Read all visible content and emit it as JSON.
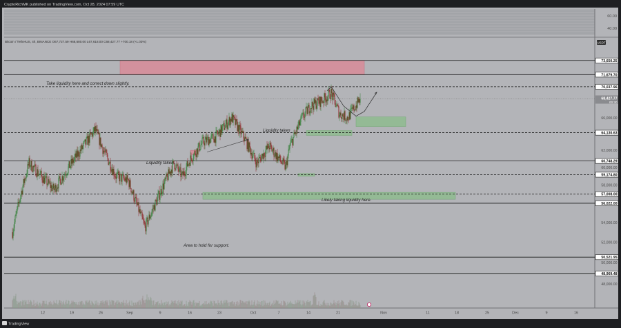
{
  "header": {
    "publisher": "CryptoRichMK published on TradingView.com, Oct 28, 2024 07:59 UTC"
  },
  "symbol_bar": {
    "text": "Bitcoin / TetherUS, 4h, BINANCE  O67,727.59  H68,680.00  L67,618.00  C68,427.77  +700.18 (+1.03%)"
  },
  "footer": {
    "brand": "TradingView"
  },
  "colors": {
    "background": "#b3b4b8",
    "frame": "#1e1f22",
    "candle_up": "#2e7d32",
    "candle_down": "#8b1f1f",
    "zone_red": "#d98c99",
    "zone_green": "#8fbc8f"
  },
  "chart_data": {
    "type": "candlestick",
    "symbol": "Bitcoin / TetherUS",
    "interval": "4h",
    "exchange": "BINANCE",
    "quote_currency": "USDT",
    "ohlc_last": {
      "open": 67727.59,
      "high": 68680.0,
      "low": 67618.0,
      "close": 68427.77,
      "change": 700.18,
      "change_pct": 1.03
    },
    "price_label": "68,427.77",
    "countdown": "00:30",
    "y_range": [
      46500,
      75800
    ],
    "y_ticks": [
      {
        "value": 66000,
        "label": "66,000.00"
      },
      {
        "value": 62000,
        "label": "62,000.00"
      },
      {
        "value": 60000,
        "label": "60,000.00"
      },
      {
        "value": 58000,
        "label": "58,000.00"
      },
      {
        "value": 54000,
        "label": "54,000.00"
      },
      {
        "value": 52000,
        "label": "52,000.00"
      },
      {
        "value": 50000,
        "label": "50,000.00"
      },
      {
        "value": 48000,
        "label": "48,000.00"
      }
    ],
    "indicator_ticks": [
      "60.00",
      "40.00"
    ],
    "levels": [
      {
        "value": 73650.25,
        "label": "73,650.25",
        "style": "solid"
      },
      {
        "value": 71679.7,
        "label": "71,679.70",
        "style": "solid"
      },
      {
        "value": 70037.96,
        "label": "70,037.96",
        "style": "dashed"
      },
      {
        "value": 64130.63,
        "label": "64,130.63",
        "style": "dashed"
      },
      {
        "value": 60748.29,
        "label": "60,748.29",
        "style": "solid"
      },
      {
        "value": 59174.8,
        "label": "59,174.80",
        "style": "dashed"
      },
      {
        "value": 57008.0,
        "label": "57,008.00",
        "style": "dashed"
      },
      {
        "value": 56022.0,
        "label": "56,022.00",
        "style": "solid"
      },
      {
        "value": 50521.95,
        "label": "50,521.95",
        "style": "solid"
      },
      {
        "value": 48969.48,
        "label": "48,969.48",
        "style": "solid"
      }
    ],
    "x_ticks": [
      "12",
      "19",
      "26",
      "Sep",
      "9",
      "16",
      "23",
      "Oct",
      "7",
      "14",
      "21",
      "Nov",
      "11",
      "18",
      "25",
      "Dec",
      "9",
      "16"
    ],
    "annotations": [
      "Take liquidity here and correct down slightly.",
      "Liquidity taken",
      "Liquidity taken.",
      "Likely taking liquidity here.",
      "Area to hold for support."
    ],
    "zones": [
      {
        "color": "red",
        "x": [
          "Aug 31",
          "Oct 29"
        ],
        "y": [
          71679.7,
          73650.25
        ]
      },
      {
        "color": "red",
        "x": [
          "Sep 17",
          "Sep 19"
        ],
        "y": [
          61500,
          62000
        ]
      },
      {
        "color": "green",
        "x": [
          "Oct 27",
          "Nov 8"
        ],
        "y": [
          64900,
          66100
        ]
      },
      {
        "color": "green",
        "x": [
          "Oct 15",
          "Oct 26"
        ],
        "y": [
          63800,
          64400
        ]
      },
      {
        "color": "green",
        "x": [
          "Oct 13",
          "Oct 17"
        ],
        "y": [
          59000,
          59300
        ]
      },
      {
        "color": "green",
        "x": [
          "Sep 20",
          "Nov 20"
        ],
        "y": [
          56450,
          57200
        ]
      }
    ],
    "price_path": [
      {
        "date": "Aug 5",
        "price": 53000
      },
      {
        "date": "Aug 7",
        "price": 57000
      },
      {
        "date": "Aug 9",
        "price": 60500
      },
      {
        "date": "Aug 12",
        "price": 59000
      },
      {
        "date": "Aug 15",
        "price": 57500
      },
      {
        "date": "Aug 20",
        "price": 61000
      },
      {
        "date": "Aug 25",
        "price": 64500
      },
      {
        "date": "Aug 27",
        "price": 62000
      },
      {
        "date": "Aug 30",
        "price": 59000
      },
      {
        "date": "Sep 2",
        "price": 58500
      },
      {
        "date": "Sep 6",
        "price": 53500
      },
      {
        "date": "Sep 10",
        "price": 57500
      },
      {
        "date": "Sep 13",
        "price": 60500
      },
      {
        "date": "Sep 15",
        "price": 59000
      },
      {
        "date": "Sep 17",
        "price": 61000
      },
      {
        "date": "Sep 20",
        "price": 63000
      },
      {
        "date": "Sep 23",
        "price": 63600
      },
      {
        "date": "Sep 27",
        "price": 66000
      },
      {
        "date": "Sep 30",
        "price": 63500
      },
      {
        "date": "Oct 3",
        "price": 60500
      },
      {
        "date": "Oct 6",
        "price": 62500
      },
      {
        "date": "Oct 10",
        "price": 60000
      },
      {
        "date": "Oct 11",
        "price": 62500
      },
      {
        "date": "Oct 14",
        "price": 66000
      },
      {
        "date": "Oct 16",
        "price": 67500
      },
      {
        "date": "Oct 19",
        "price": 68300
      },
      {
        "date": "Oct 21",
        "price": 69200
      },
      {
        "date": "Oct 23",
        "price": 66500
      },
      {
        "date": "Oct 25",
        "price": 66000
      },
      {
        "date": "Oct 28",
        "price": 68427.77
      }
    ],
    "projection_path": [
      {
        "date": "Oct 20",
        "price": 69500
      },
      {
        "date": "Oct 21",
        "price": 70037.96
      },
      {
        "date": "Oct 24",
        "price": 67500
      },
      {
        "date": "Oct 27",
        "price": 66200
      },
      {
        "date": "Oct 29",
        "price": 66800
      },
      {
        "date": "Nov 1",
        "price": 69300
      }
    ],
    "grid": false,
    "legend": "none"
  }
}
